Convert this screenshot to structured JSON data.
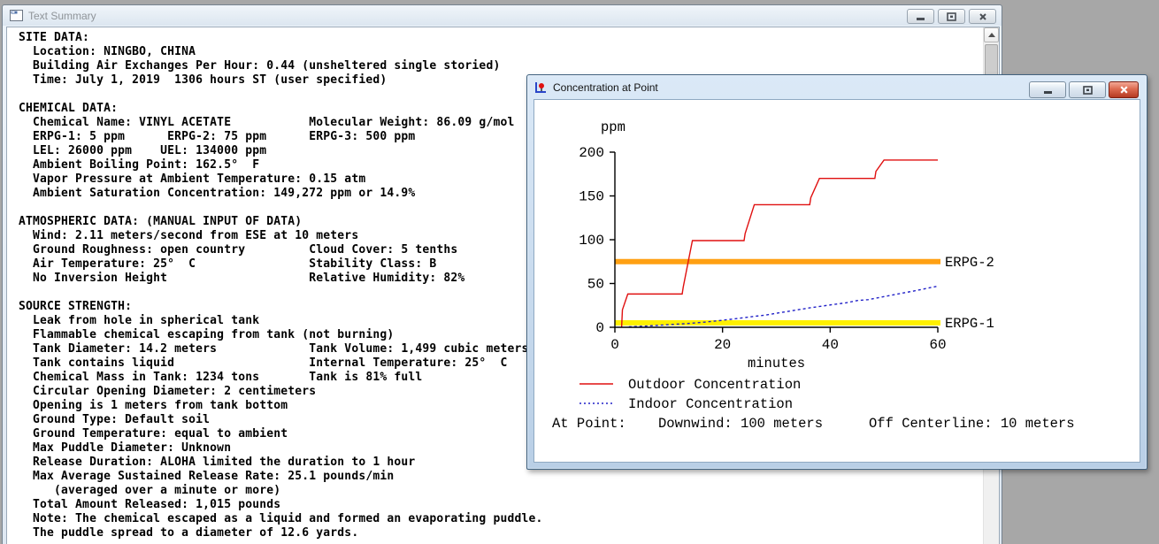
{
  "desktop": {
    "background": "#a7a7a7"
  },
  "text_summary_window": {
    "title": "Text Summary",
    "icon": "document-window-icon",
    "controls": {
      "minimize": "minimize",
      "maximize": "maximize",
      "close": "close"
    },
    "scrollbar": {
      "position": "top"
    },
    "lines": [
      "SITE DATA:",
      "  Location: NINGBO, CHINA",
      "  Building Air Exchanges Per Hour: 0.44 (unsheltered single storied)",
      "  Time: July 1, 2019  1306 hours ST (user specified)",
      "",
      "CHEMICAL DATA:",
      "  Chemical Name: VINYL ACETATE           Molecular Weight: 86.09 g/mol",
      "  ERPG-1: 5 ppm      ERPG-2: 75 ppm      ERPG-3: 500 ppm",
      "  LEL: 26000 ppm    UEL: 134000 ppm",
      "  Ambient Boiling Point: 162.5°  F",
      "  Vapor Pressure at Ambient Temperature: 0.15 atm",
      "  Ambient Saturation Concentration: 149,272 ppm or 14.9%",
      "",
      "ATMOSPHERIC DATA: (MANUAL INPUT OF DATA)",
      "  Wind: 2.11 meters/second from ESE at 10 meters",
      "  Ground Roughness: open country         Cloud Cover: 5 tenths",
      "  Air Temperature: 25°  C                Stability Class: B",
      "  No Inversion Height                    Relative Humidity: 82%",
      "",
      "SOURCE STRENGTH:",
      "  Leak from hole in spherical tank",
      "  Flammable chemical escaping from tank (not burning)",
      "  Tank Diameter: 14.2 meters             Tank Volume: 1,499 cubic meters",
      "  Tank contains liquid                   Internal Temperature: 25°  C",
      "  Chemical Mass in Tank: 1234 tons       Tank is 81% full",
      "  Circular Opening Diameter: 2 centimeters",
      "  Opening is 1 meters from tank bottom",
      "  Ground Type: Default soil",
      "  Ground Temperature: equal to ambient",
      "  Max Puddle Diameter: Unknown",
      "  Release Duration: ALOHA limited the duration to 1 hour",
      "  Max Average Sustained Release Rate: 25.1 pounds/min",
      "     (averaged over a minute or more)",
      "  Total Amount Released: 1,015 pounds",
      "  Note: The chemical escaped as a liquid and formed an evaporating puddle.",
      "  The puddle spread to a diameter of 12.6 yards."
    ]
  },
  "concentration_window": {
    "title": "Concentration at Point",
    "icon": "chart-window-icon",
    "controls": {
      "minimize": "minimize",
      "maximize": "maximize",
      "close": "close"
    }
  },
  "chart_data": {
    "type": "line",
    "title": "Concentration at Point",
    "ylabel": "ppm",
    "xlabel": "minutes",
    "xlim": [
      0,
      60
    ],
    "ylim": [
      0,
      200
    ],
    "xticks": [
      0,
      20,
      40,
      60
    ],
    "yticks": [
      0,
      50,
      100,
      150,
      200
    ],
    "grid": false,
    "legend_position": "bottom-left",
    "text_color": "#000000",
    "series": [
      {
        "name": "Outdoor Concentration",
        "color": "#e01010",
        "style": "solid",
        "points": [
          [
            1.25,
            0
          ],
          [
            1.4,
            20
          ],
          [
            2.4,
            38
          ],
          [
            12.5,
            38
          ],
          [
            12.7,
            46
          ],
          [
            14.4,
            99
          ],
          [
            24.0,
            99
          ],
          [
            24.2,
            107
          ],
          [
            25.9,
            140
          ],
          [
            36.2,
            140
          ],
          [
            36.4,
            148
          ],
          [
            38.0,
            170
          ],
          [
            48.3,
            170
          ],
          [
            48.5,
            178
          ],
          [
            50.0,
            191
          ],
          [
            60,
            191
          ]
        ]
      },
      {
        "name": "Indoor Concentration",
        "color": "#2121c8",
        "style": "dashed",
        "points": [
          [
            2.6,
            0.5
          ],
          [
            6,
            1.5
          ],
          [
            10,
            3
          ],
          [
            14,
            4.5
          ],
          [
            16,
            5.5
          ],
          [
            20,
            8
          ],
          [
            24,
            11
          ],
          [
            28,
            14
          ],
          [
            32,
            18
          ],
          [
            36,
            22
          ],
          [
            40,
            25.5
          ],
          [
            43,
            28
          ],
          [
            45,
            30.5
          ],
          [
            47,
            31.5
          ],
          [
            50,
            35
          ],
          [
            53,
            38.5
          ],
          [
            56,
            42
          ],
          [
            58,
            44.5
          ],
          [
            60,
            47
          ]
        ]
      }
    ],
    "reference_lines": [
      {
        "label": "ERPG-2",
        "value": 75,
        "color": "#ffa013"
      },
      {
        "label": "ERPG-1",
        "value": 5,
        "color": "#fff000"
      }
    ],
    "at_point": {
      "label": "At Point:",
      "downwind": "Downwind: 100 meters",
      "off_centerline": "Off Centerline: 10 meters"
    }
  }
}
